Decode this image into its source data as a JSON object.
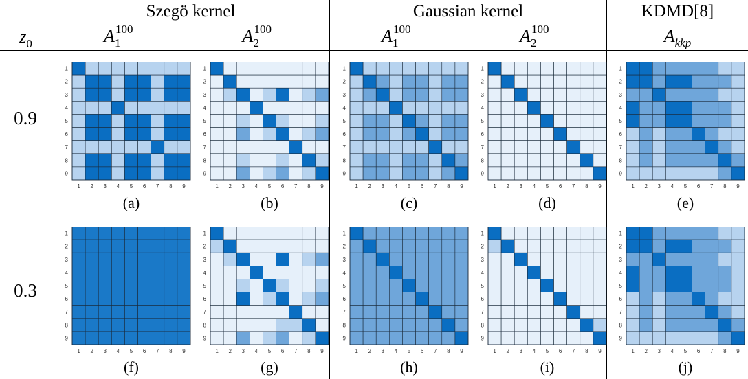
{
  "header": {
    "z0_label_base": "z",
    "z0_label_sub": "0",
    "groups": [
      "Szegö kernel",
      "Gaussian kernel",
      "KDMD[8]"
    ],
    "columns": [
      {
        "base": "A",
        "sub": "1",
        "sup": "100"
      },
      {
        "base": "A",
        "sub": "2",
        "sup": "100"
      },
      {
        "base": "A",
        "sub": "1",
        "sup": "100"
      },
      {
        "base": "A",
        "sub": "2",
        "sup": "100"
      },
      {
        "base": "A",
        "sub": "kkp",
        "sup": ""
      }
    ]
  },
  "rows": [
    {
      "z0": "0.9",
      "panels": [
        {
          "caption": "(a)",
          "matrix": [
            [
              3,
              1,
              1,
              1,
              1,
              1,
              1,
              1,
              1
            ],
            [
              1,
              3,
              3,
              1,
              3,
              3,
              1,
              3,
              3
            ],
            [
              1,
              3,
              3,
              1,
              3,
              3,
              1,
              3,
              3
            ],
            [
              1,
              1,
              1,
              3,
              1,
              1,
              1,
              1,
              1
            ],
            [
              1,
              3,
              3,
              1,
              3,
              3,
              1,
              3,
              3
            ],
            [
              1,
              3,
              3,
              1,
              3,
              3,
              1,
              3,
              3
            ],
            [
              1,
              1,
              1,
              1,
              1,
              1,
              3,
              1,
              1
            ],
            [
              1,
              3,
              3,
              1,
              3,
              3,
              1,
              3,
              3
            ],
            [
              1,
              3,
              3,
              1,
              3,
              3,
              1,
              3,
              3
            ]
          ]
        },
        {
          "caption": "(b)",
          "matrix": [
            [
              3,
              0,
              0,
              0,
              0,
              0,
              0,
              0,
              0
            ],
            [
              0,
              3,
              0,
              0,
              0,
              0,
              0,
              0,
              0
            ],
            [
              0,
              1,
              3,
              0,
              1,
              3,
              0,
              1,
              2
            ],
            [
              0,
              0,
              0,
              3,
              0,
              0,
              0,
              0,
              0
            ],
            [
              0,
              0,
              1,
              0,
              3,
              1,
              0,
              0,
              1
            ],
            [
              0,
              0,
              2,
              0,
              1,
              3,
              0,
              1,
              2
            ],
            [
              0,
              0,
              0,
              0,
              0,
              0,
              3,
              0,
              0
            ],
            [
              0,
              0,
              1,
              0,
              0,
              1,
              0,
              3,
              1
            ],
            [
              0,
              0,
              2,
              0,
              1,
              2,
              0,
              1,
              3
            ]
          ]
        },
        {
          "caption": "(c)",
          "matrix": [
            [
              3,
              1,
              1,
              1,
              1,
              1,
              1,
              1,
              1
            ],
            [
              1,
              3,
              2,
              1,
              2,
              2,
              1,
              2,
              2
            ],
            [
              1,
              2,
              3,
              1,
              2,
              2,
              1,
              2,
              2
            ],
            [
              1,
              1,
              1,
              3,
              1,
              1,
              1,
              1,
              1
            ],
            [
              1,
              2,
              2,
              1,
              3,
              2,
              1,
              2,
              2
            ],
            [
              1,
              2,
              2,
              1,
              2,
              3,
              1,
              2,
              2
            ],
            [
              1,
              1,
              1,
              1,
              1,
              1,
              3,
              1,
              1
            ],
            [
              1,
              2,
              2,
              1,
              2,
              2,
              1,
              3,
              2
            ],
            [
              1,
              2,
              2,
              1,
              2,
              2,
              1,
              2,
              3
            ]
          ]
        },
        {
          "caption": "(d)",
          "matrix": [
            [
              3,
              0,
              0,
              0,
              0,
              0,
              0,
              0,
              0
            ],
            [
              0,
              3,
              0,
              0,
              0,
              0,
              0,
              0,
              0
            ],
            [
              0,
              0,
              3,
              0,
              0,
              0,
              0,
              0,
              0
            ],
            [
              0,
              0,
              0,
              3,
              0,
              0,
              0,
              0,
              0
            ],
            [
              0,
              0,
              0,
              0,
              3,
              0,
              0,
              0,
              0
            ],
            [
              0,
              0,
              0,
              0,
              0,
              3,
              0,
              0,
              0
            ],
            [
              0,
              0,
              0,
              0,
              0,
              0,
              3,
              0,
              0
            ],
            [
              0,
              0,
              0,
              0,
              0,
              0,
              0,
              3,
              0
            ],
            [
              0,
              0,
              0,
              0,
              0,
              0,
              0,
              0,
              3
            ]
          ]
        },
        {
          "caption": "(e)",
          "matrix": [
            [
              3,
              3,
              2,
              2,
              2,
              2,
              2,
              1,
              1
            ],
            [
              3,
              3,
              2,
              3,
              3,
              2,
              2,
              2,
              1
            ],
            [
              2,
              2,
              3,
              2,
              2,
              2,
              2,
              1,
              1
            ],
            [
              3,
              2,
              2,
              3,
              3,
              2,
              2,
              2,
              1
            ],
            [
              3,
              2,
              2,
              3,
              3,
              2,
              2,
              2,
              1
            ],
            [
              1,
              2,
              1,
              2,
              2,
              3,
              2,
              1,
              1
            ],
            [
              1,
              2,
              1,
              2,
              2,
              2,
              3,
              2,
              1
            ],
            [
              1,
              2,
              1,
              2,
              2,
              2,
              2,
              3,
              2
            ],
            [
              1,
              1,
              1,
              1,
              1,
              1,
              1,
              2,
              3
            ]
          ]
        }
      ]
    },
    {
      "z0": "0.3",
      "panels": [
        {
          "caption": "(f)",
          "matrix": [
            [
              4,
              4,
              4,
              4,
              4,
              4,
              4,
              4,
              4
            ],
            [
              4,
              4,
              4,
              4,
              4,
              4,
              4,
              4,
              4
            ],
            [
              4,
              4,
              4,
              4,
              4,
              4,
              4,
              4,
              4
            ],
            [
              4,
              4,
              4,
              4,
              4,
              4,
              4,
              4,
              4
            ],
            [
              4,
              4,
              4,
              4,
              4,
              4,
              4,
              4,
              4
            ],
            [
              4,
              4,
              4,
              4,
              4,
              4,
              4,
              4,
              4
            ],
            [
              4,
              4,
              4,
              4,
              4,
              4,
              4,
              4,
              4
            ],
            [
              4,
              4,
              4,
              4,
              4,
              4,
              4,
              4,
              4
            ],
            [
              4,
              4,
              4,
              4,
              4,
              4,
              4,
              4,
              4
            ]
          ]
        },
        {
          "caption": "(g)",
          "matrix": [
            [
              3,
              0,
              0,
              0,
              0,
              0,
              0,
              0,
              0
            ],
            [
              1,
              3,
              0,
              0,
              0,
              0,
              0,
              0,
              0
            ],
            [
              0,
              1,
              3,
              0,
              0,
              3,
              0,
              1,
              2
            ],
            [
              0,
              0,
              0,
              3,
              0,
              0,
              0,
              0,
              0
            ],
            [
              0,
              0,
              1,
              0,
              3,
              1,
              0,
              0,
              1
            ],
            [
              0,
              0,
              3,
              0,
              1,
              3,
              0,
              1,
              2
            ],
            [
              0,
              0,
              0,
              0,
              0,
              0,
              3,
              0,
              0
            ],
            [
              0,
              0,
              0,
              0,
              0,
              1,
              1,
              3,
              0
            ],
            [
              0,
              0,
              2,
              0,
              1,
              2,
              0,
              1,
              3
            ]
          ]
        },
        {
          "caption": "(h)",
          "matrix": [
            [
              3,
              2,
              2,
              2,
              2,
              2,
              2,
              2,
              2
            ],
            [
              2,
              3,
              2,
              2,
              2,
              2,
              2,
              2,
              2
            ],
            [
              2,
              2,
              3,
              2,
              2,
              2,
              2,
              2,
              2
            ],
            [
              2,
              2,
              2,
              3,
              2,
              2,
              2,
              2,
              2
            ],
            [
              2,
              2,
              2,
              2,
              3,
              2,
              2,
              2,
              2
            ],
            [
              2,
              2,
              2,
              2,
              2,
              3,
              2,
              2,
              2
            ],
            [
              2,
              2,
              2,
              2,
              2,
              2,
              3,
              2,
              2
            ],
            [
              2,
              2,
              2,
              2,
              2,
              2,
              2,
              3,
              2
            ],
            [
              2,
              2,
              2,
              2,
              2,
              2,
              2,
              2,
              3
            ]
          ]
        },
        {
          "caption": "(i)",
          "matrix": [
            [
              3,
              0,
              0,
              0,
              0,
              0,
              0,
              0,
              0
            ],
            [
              1,
              3,
              0,
              0,
              0,
              0,
              0,
              0,
              0
            ],
            [
              0,
              0,
              3,
              0,
              0,
              0,
              0,
              0,
              0
            ],
            [
              0,
              0,
              0,
              3,
              0,
              0,
              0,
              0,
              0
            ],
            [
              0,
              0,
              0,
              0,
              3,
              0,
              0,
              0,
              0
            ],
            [
              0,
              0,
              0,
              0,
              0,
              3,
              0,
              0,
              0
            ],
            [
              0,
              0,
              0,
              0,
              0,
              0,
              3,
              0,
              0
            ],
            [
              0,
              0,
              0,
              0,
              0,
              0,
              0,
              3,
              1
            ],
            [
              0,
              0,
              0,
              0,
              0,
              0,
              0,
              0,
              3
            ]
          ]
        },
        {
          "caption": "(j)",
          "matrix": [
            [
              3,
              3,
              2,
              2,
              2,
              2,
              2,
              1,
              1
            ],
            [
              3,
              3,
              2,
              3,
              3,
              2,
              2,
              2,
              1
            ],
            [
              2,
              2,
              3,
              2,
              2,
              2,
              2,
              1,
              1
            ],
            [
              3,
              2,
              2,
              3,
              3,
              2,
              2,
              2,
              1
            ],
            [
              3,
              2,
              2,
              3,
              3,
              2,
              2,
              2,
              1
            ],
            [
              1,
              2,
              1,
              2,
              2,
              3,
              2,
              1,
              1
            ],
            [
              1,
              2,
              1,
              2,
              2,
              2,
              3,
              2,
              1
            ],
            [
              1,
              2,
              1,
              2,
              2,
              2,
              2,
              3,
              2
            ],
            [
              1,
              1,
              1,
              1,
              1,
              1,
              1,
              2,
              3
            ]
          ]
        }
      ]
    }
  ],
  "tick_labels": [
    "1",
    "2",
    "3",
    "4",
    "5",
    "6",
    "7",
    "8",
    "9"
  ],
  "colors": {
    "level_0": "#e6f0fa",
    "level_1": "#b7d3ef",
    "level_2": "#6fa6da",
    "level_3": "#0a6ec2",
    "level_4": "#1a79c8",
    "grid": "#1a2a3a"
  }
}
